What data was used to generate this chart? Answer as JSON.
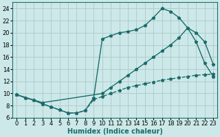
{
  "background_color": "#cde8e8",
  "grid_color": "#b0cccc",
  "line_color": "#1a6b6b",
  "line_width": 1.0,
  "marker": "*",
  "marker_size": 3.5,
  "xlabel": "Humidex (Indice chaleur)",
  "xlabel_fontsize": 7,
  "tick_fontsize": 6,
  "ylim": [
    6,
    25
  ],
  "xlim": [
    -0.5,
    23.5
  ],
  "yticks": [
    6,
    8,
    10,
    12,
    14,
    16,
    18,
    20,
    22,
    24
  ],
  "xticks": [
    0,
    1,
    2,
    3,
    4,
    5,
    6,
    7,
    8,
    9,
    10,
    11,
    12,
    13,
    14,
    15,
    16,
    17,
    18,
    19,
    20,
    21,
    22,
    23
  ],
  "curve1_x": [
    0,
    1,
    2,
    3,
    4,
    5,
    6,
    7,
    8,
    9,
    10,
    11,
    12,
    13,
    14,
    15,
    16,
    17,
    18,
    19,
    20,
    21,
    22,
    23
  ],
  "curve1_y": [
    9.8,
    9.3,
    8.9,
    8.3,
    7.8,
    7.3,
    6.8,
    6.8,
    7.2,
    9.3,
    19.0,
    19.5,
    20.0,
    20.2,
    20.5,
    21.2,
    22.5,
    24.0,
    23.5,
    22.5,
    20.8,
    18.5,
    15.0,
    12.8
  ],
  "curve2_x": [
    0,
    1,
    2,
    3,
    4,
    5,
    6,
    7,
    8,
    9,
    10,
    11,
    12,
    13,
    14,
    15,
    16,
    17,
    18,
    19,
    20,
    21,
    22,
    23
  ],
  "curve2_y": [
    9.8,
    9.3,
    8.9,
    8.3,
    7.8,
    7.3,
    6.8,
    6.8,
    7.2,
    9.0,
    9.5,
    10.0,
    10.5,
    11.0,
    11.3,
    11.6,
    11.9,
    12.2,
    12.4,
    12.6,
    12.8,
    13.0,
    13.1,
    13.2
  ],
  "curve3_x": [
    0,
    3,
    10,
    11,
    12,
    13,
    14,
    15,
    16,
    17,
    18,
    19,
    20,
    21,
    22,
    23
  ],
  "curve3_y": [
    9.8,
    8.5,
    10.0,
    11.0,
    12.0,
    13.0,
    14.0,
    15.0,
    16.0,
    17.0,
    18.0,
    19.2,
    20.8,
    20.0,
    18.5,
    14.8
  ]
}
